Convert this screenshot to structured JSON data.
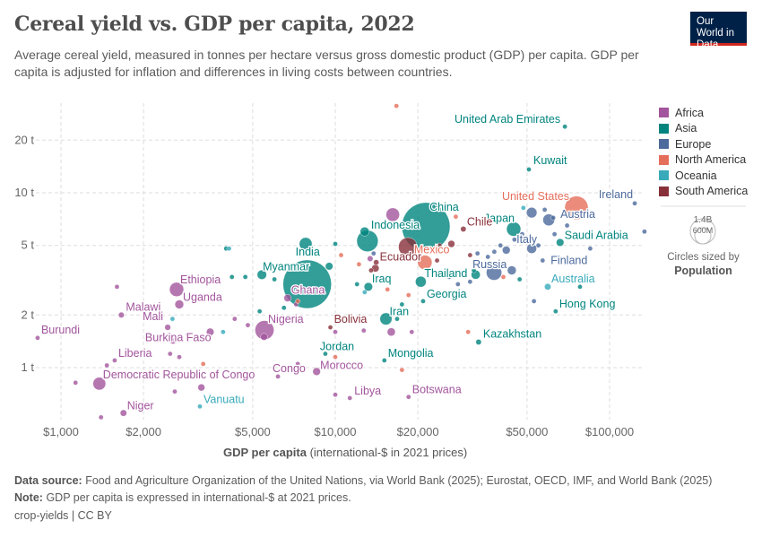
{
  "header": {
    "title": "Cereal yield vs. GDP per capita, 2022",
    "subtitle": "Average cereal yield, measured in tonnes per hectare versus gross domestic product (GDP) per capita. GDP per capita is adjusted for inflation and differences in living costs between countries.",
    "logo": "Our World in Data"
  },
  "legend": {
    "items": [
      {
        "label": "Africa",
        "color": "#a2559c"
      },
      {
        "label": "Asia",
        "color": "#00847e"
      },
      {
        "label": "Europe",
        "color": "#4c6a9c"
      },
      {
        "label": "North America",
        "color": "#e56e5a"
      },
      {
        "label": "Oceania",
        "color": "#38aaba"
      },
      {
        "label": "South America",
        "color": "#883039"
      }
    ],
    "size_big": "1.4B",
    "size_small": "600M",
    "size_caption": "Circles sized by",
    "size_variable": "Population"
  },
  "footer": {
    "source_label": "Data source:",
    "source": "Food and Agriculture Organization of the United Nations, via World Bank (2025); Eurostat, OECD, IMF, and World Bank (2025)",
    "note_label": "Note:",
    "note": "GDP per capita is expressed in international-$ at 2021 prices.",
    "license": "crop-yields | CC BY"
  },
  "chart_data": {
    "type": "scatter",
    "xscale": "log",
    "yscale": "log",
    "xlabel_bold": "GDP per capita",
    "xlabel_rest": "(international-$ in 2021 prices)",
    "ylabel": "",
    "xlim": [
      800,
      134000
    ],
    "ylim": [
      0.5,
      32
    ],
    "grid": true,
    "legend": "right",
    "xticks": [
      {
        "v": 1000,
        "l": "$1,000"
      },
      {
        "v": 2000,
        "l": "$2,000"
      },
      {
        "v": 5000,
        "l": "$5,000"
      },
      {
        "v": 10000,
        "l": "$10,000"
      },
      {
        "v": 20000,
        "l": "$20,000"
      },
      {
        "v": 50000,
        "l": "$50,000"
      },
      {
        "v": 100000,
        "l": "$100,000"
      }
    ],
    "yticks": [
      {
        "v": 1,
        "l": "1 t"
      },
      {
        "v": 2,
        "l": "2 t"
      },
      {
        "v": 5,
        "l": "5 t"
      },
      {
        "v": 10,
        "l": "10 t"
      },
      {
        "v": 20,
        "l": "20 t"
      }
    ],
    "points": [
      {
        "label": "United Arab Emirates",
        "r": "Asia",
        "x": 68700,
        "y": 23.9,
        "pop": 9
      },
      {
        "label": "Kuwait",
        "r": "Asia",
        "x": 50800,
        "y": 13.6,
        "pop": 4
      },
      {
        "label": "United States",
        "r": "North America",
        "x": 75700,
        "y": 8.2,
        "pop": 333
      },
      {
        "label": "Ireland",
        "r": "Europe",
        "x": 123500,
        "y": 8.7,
        "pop": 5
      },
      {
        "label": "Austria",
        "r": "Europe",
        "x": 62300,
        "y": 7.2,
        "pop": 9
      },
      {
        "label": "Japan",
        "r": "Asia",
        "x": 44700,
        "y": 6.2,
        "pop": 124
      },
      {
        "label": "Saudi Arabia",
        "r": "Asia",
        "x": 66000,
        "y": 5.2,
        "pop": 36
      },
      {
        "label": "Italy",
        "r": "Europe",
        "x": 52000,
        "y": 4.8,
        "pop": 59
      },
      {
        "label": "Finland",
        "r": "Europe",
        "x": 57000,
        "y": 4.1,
        "pop": 6
      },
      {
        "label": "Russia",
        "r": "Europe",
        "x": 37900,
        "y": 3.5,
        "pop": 144
      },
      {
        "label": "Australia",
        "r": "Oceania",
        "x": 59500,
        "y": 2.9,
        "pop": 26
      },
      {
        "label": "Hong Kong",
        "r": "Asia",
        "x": 63600,
        "y": 2.1,
        "pop": 7
      },
      {
        "label": "Kazakhstan",
        "r": "Asia",
        "x": 33300,
        "y": 1.4,
        "pop": 19
      },
      {
        "label": "China",
        "r": "Asia",
        "x": 21400,
        "y": 6.4,
        "pop": 1410
      },
      {
        "label": "Chile",
        "r": "South America",
        "x": 29300,
        "y": 6.2,
        "pop": 19
      },
      {
        "label": "Mexico",
        "r": "North America",
        "x": 21200,
        "y": 4.0,
        "pop": 127
      },
      {
        "label": "Ecuador",
        "r": "South America",
        "x": 14100,
        "y": 4.0,
        "pop": 18
      },
      {
        "label": "",
        "r": "South America",
        "x": 18400,
        "y": 4.9,
        "pop": 215
      },
      {
        "label": "Thailand",
        "r": "Asia",
        "x": 20500,
        "y": 3.1,
        "pop": 71
      },
      {
        "label": "Indonesia",
        "r": "Asia",
        "x": 13100,
        "y": 5.3,
        "pop": 276
      },
      {
        "label": "India",
        "r": "Asia",
        "x": 7900,
        "y": 3.0,
        "pop": 1420
      },
      {
        "label": "Myanmar",
        "r": "Asia",
        "x": 5400,
        "y": 3.4,
        "pop": 54
      },
      {
        "label": "Iraq",
        "r": "Asia",
        "x": 13200,
        "y": 2.9,
        "pop": 44
      },
      {
        "label": "Georgia",
        "r": "Asia",
        "x": 20900,
        "y": 2.4,
        "pop": 4
      },
      {
        "label": "Iran",
        "r": "Asia",
        "x": 15300,
        "y": 1.9,
        "pop": 89
      },
      {
        "label": "Bolivia",
        "r": "South America",
        "x": 9600,
        "y": 1.7,
        "pop": 12
      },
      {
        "label": "Jordan",
        "r": "Asia",
        "x": 9200,
        "y": 1.2,
        "pop": 11
      },
      {
        "label": "Mongolia",
        "r": "Asia",
        "x": 15100,
        "y": 1.1,
        "pop": 3
      },
      {
        "label": "Morocco",
        "r": "Africa",
        "x": 8550,
        "y": 0.95,
        "pop": 37
      },
      {
        "label": "Congo",
        "r": "Africa",
        "x": 6180,
        "y": 0.89,
        "pop": 6
      },
      {
        "label": "Libya",
        "r": "Africa",
        "x": 11300,
        "y": 0.67,
        "pop": 7
      },
      {
        "label": "Botswana",
        "r": "Africa",
        "x": 18500,
        "y": 0.68,
        "pop": 3
      },
      {
        "label": "Ethiopia",
        "r": "Africa",
        "x": 2640,
        "y": 2.8,
        "pop": 123
      },
      {
        "label": "Uganda",
        "r": "Africa",
        "x": 2700,
        "y": 2.3,
        "pop": 47
      },
      {
        "label": "Malawi",
        "r": "Africa",
        "x": 1660,
        "y": 2.0,
        "pop": 20
      },
      {
        "label": "Mali",
        "r": "Africa",
        "x": 2450,
        "y": 1.7,
        "pop": 22
      },
      {
        "label": "Nigeria",
        "r": "Africa",
        "x": 5520,
        "y": 1.64,
        "pop": 218
      },
      {
        "label": "Ghana",
        "r": "Africa",
        "x": 6700,
        "y": 2.5,
        "pop": 33
      },
      {
        "label": "Burkina Faso",
        "r": "Africa",
        "x": 2560,
        "y": 1.42,
        "pop": 22
      },
      {
        "label": "Burundi",
        "r": "Africa",
        "x": 822,
        "y": 1.48,
        "pop": 13
      },
      {
        "label": "Liberia",
        "r": "Africa",
        "x": 1570,
        "y": 1.1,
        "pop": 5
      },
      {
        "label": "Democratic Republic of Congo",
        "r": "Africa",
        "x": 1380,
        "y": 0.81,
        "pop": 99
      },
      {
        "label": "Niger",
        "r": "Africa",
        "x": 1690,
        "y": 0.55,
        "pop": 26
      },
      {
        "label": "Vanuatu",
        "r": "Oceania",
        "x": 3210,
        "y": 0.6,
        "pop": 0.3
      },
      {
        "label": "",
        "r": "Africa",
        "x": 16200,
        "y": 7.5,
        "pop": 111
      },
      {
        "label": "",
        "r": "North America",
        "x": 16700,
        "y": 31.4,
        "pop": 0.3
      },
      {
        "label": "",
        "r": "Africa",
        "x": 1600,
        "y": 2.9,
        "pop": 5
      },
      {
        "label": "",
        "r": "Africa",
        "x": 4300,
        "y": 1.9,
        "pop": 5
      },
      {
        "label": "",
        "r": "Africa",
        "x": 4800,
        "y": 1.75,
        "pop": 5
      },
      {
        "label": "",
        "r": "Africa",
        "x": 3500,
        "y": 1.6,
        "pop": 35
      },
      {
        "label": "",
        "r": "Africa",
        "x": 2900,
        "y": 1.55,
        "pop": 5
      },
      {
        "label": "",
        "r": "Africa",
        "x": 3250,
        "y": 1.45,
        "pop": 5
      },
      {
        "label": "",
        "r": "Africa",
        "x": 2500,
        "y": 1.2,
        "pop": 5
      },
      {
        "label": "",
        "r": "Africa",
        "x": 2700,
        "y": 1.15,
        "pop": 5
      },
      {
        "label": "",
        "r": "Africa",
        "x": 1470,
        "y": 1.03,
        "pop": 5
      },
      {
        "label": "",
        "r": "Africa",
        "x": 1130,
        "y": 0.82,
        "pop": 5
      },
      {
        "label": "",
        "r": "Africa",
        "x": 2600,
        "y": 0.73,
        "pop": 5
      },
      {
        "label": "",
        "r": "Africa",
        "x": 3250,
        "y": 0.77,
        "pop": 30
      },
      {
        "label": "",
        "r": "Africa",
        "x": 7300,
        "y": 1.05,
        "pop": 5
      },
      {
        "label": "",
        "r": "Africa",
        "x": 10000,
        "y": 0.7,
        "pop": 5
      },
      {
        "label": "",
        "r": "Africa",
        "x": 10000,
        "y": 1.6,
        "pop": 5
      },
      {
        "label": "",
        "r": "Africa",
        "x": 12700,
        "y": 1.63,
        "pop": 5
      },
      {
        "label": "",
        "r": "Africa",
        "x": 16000,
        "y": 1.6,
        "pop": 40
      },
      {
        "label": "",
        "r": "Africa",
        "x": 19000,
        "y": 1.6,
        "pop": 5
      },
      {
        "label": "",
        "r": "Africa",
        "x": 1400,
        "y": 0.52,
        "pop": 5
      },
      {
        "label": "",
        "r": "Africa",
        "x": 5500,
        "y": 1.5,
        "pop": 30
      },
      {
        "label": "",
        "r": "Africa",
        "x": 7200,
        "y": 2.3,
        "pop": 5
      },
      {
        "label": "",
        "r": "Africa",
        "x": 13400,
        "y": 4.2,
        "pop": 20
      },
      {
        "label": "",
        "r": "Asia",
        "x": 4000,
        "y": 4.8,
        "pop": 3
      },
      {
        "label": "",
        "r": "Asia",
        "x": 4200,
        "y": 3.3,
        "pop": 3
      },
      {
        "label": "",
        "r": "Asia",
        "x": 4700,
        "y": 3.3,
        "pop": 5
      },
      {
        "label": "",
        "r": "Asia",
        "x": 6000,
        "y": 3.2,
        "pop": 5
      },
      {
        "label": "",
        "r": "Asia",
        "x": 6500,
        "y": 2.2,
        "pop": 5
      },
      {
        "label": "",
        "r": "Asia",
        "x": 5300,
        "y": 2.1,
        "pop": 5
      },
      {
        "label": "",
        "r": "Asia",
        "x": 7800,
        "y": 5.1,
        "pop": 100
      },
      {
        "label": "",
        "r": "Asia",
        "x": 9500,
        "y": 3.8,
        "pop": 35
      },
      {
        "label": "",
        "r": "Asia",
        "x": 10000,
        "y": 5.1,
        "pop": 3
      },
      {
        "label": "",
        "r": "Asia",
        "x": 12800,
        "y": 6.0,
        "pop": 50
      },
      {
        "label": "",
        "r": "Asia",
        "x": 17500,
        "y": 2.3,
        "pop": 3
      },
      {
        "label": "",
        "r": "Asia",
        "x": 16800,
        "y": 1.9,
        "pop": 3
      },
      {
        "label": "",
        "r": "Asia",
        "x": 32000,
        "y": 3.6,
        "pop": 5
      },
      {
        "label": "",
        "r": "Asia",
        "x": 32500,
        "y": 3.4,
        "pop": 50
      },
      {
        "label": "",
        "r": "Asia",
        "x": 47000,
        "y": 3.2,
        "pop": 5
      },
      {
        "label": "",
        "r": "Asia",
        "x": 78000,
        "y": 2.9,
        "pop": 3
      },
      {
        "label": "",
        "r": "Asia",
        "x": 12000,
        "y": 3.0,
        "pop": 3
      },
      {
        "label": "",
        "r": "Europe",
        "x": 26000,
        "y": 3.3,
        "pop": 5
      },
      {
        "label": "",
        "r": "Europe",
        "x": 31000,
        "y": 3.1,
        "pop": 5
      },
      {
        "label": "",
        "r": "Europe",
        "x": 38000,
        "y": 4.6,
        "pop": 5
      },
      {
        "label": "",
        "r": "Europe",
        "x": 40000,
        "y": 5.0,
        "pop": 10
      },
      {
        "label": "",
        "r": "Europe",
        "x": 42000,
        "y": 4.7,
        "pop": 38
      },
      {
        "label": "",
        "r": "Europe",
        "x": 45000,
        "y": 5.4,
        "pop": 5
      },
      {
        "label": "",
        "r": "Europe",
        "x": 48000,
        "y": 5.8,
        "pop": 5
      },
      {
        "label": "",
        "r": "Europe",
        "x": 52000,
        "y": 7.7,
        "pop": 67
      },
      {
        "label": "",
        "r": "Europe",
        "x": 58000,
        "y": 8.0,
        "pop": 5
      },
      {
        "label": "",
        "r": "Europe",
        "x": 60000,
        "y": 7.0,
        "pop": 84
      },
      {
        "label": "",
        "r": "Europe",
        "x": 63000,
        "y": 5.8,
        "pop": 5
      },
      {
        "label": "",
        "r": "Europe",
        "x": 70000,
        "y": 6.5,
        "pop": 5
      },
      {
        "label": "",
        "r": "Europe",
        "x": 85000,
        "y": 4.8,
        "pop": 5
      },
      {
        "label": "",
        "r": "Europe",
        "x": 134000,
        "y": 6.0,
        "pop": 1
      },
      {
        "label": "",
        "r": "Europe",
        "x": 53000,
        "y": 2.4,
        "pop": 5
      },
      {
        "label": "",
        "r": "Europe",
        "x": 36000,
        "y": 4.3,
        "pop": 5
      },
      {
        "label": "",
        "r": "Europe",
        "x": 44000,
        "y": 3.6,
        "pop": 48
      },
      {
        "label": "",
        "r": "Europe",
        "x": 33000,
        "y": 4.5,
        "pop": 5
      },
      {
        "label": "",
        "r": "Europe",
        "x": 13800,
        "y": 4.5,
        "pop": 5
      },
      {
        "label": "",
        "r": "Europe",
        "x": 55000,
        "y": 5.0,
        "pop": 5
      },
      {
        "label": "",
        "r": "Europe",
        "x": 28000,
        "y": 3.0,
        "pop": 5
      },
      {
        "label": "",
        "r": "North America",
        "x": 10500,
        "y": 4.4,
        "pop": 1
      },
      {
        "label": "",
        "r": "North America",
        "x": 12200,
        "y": 3.9,
        "pop": 1
      },
      {
        "label": "",
        "r": "North America",
        "x": 15500,
        "y": 2.8,
        "pop": 2
      },
      {
        "label": "",
        "r": "North America",
        "x": 18500,
        "y": 2.6,
        "pop": 2
      },
      {
        "label": "",
        "r": "North America",
        "x": 26500,
        "y": 3.4,
        "pop": 2
      },
      {
        "label": "",
        "r": "North America",
        "x": 27500,
        "y": 7.3,
        "pop": 1
      },
      {
        "label": "",
        "r": "North America",
        "x": 41000,
        "y": 3.3,
        "pop": 1
      },
      {
        "label": "",
        "r": "North America",
        "x": 30500,
        "y": 1.6,
        "pop": 1
      },
      {
        "label": "",
        "r": "North America",
        "x": 10000,
        "y": 1.15,
        "pop": 1
      },
      {
        "label": "",
        "r": "North America",
        "x": 17500,
        "y": 0.97,
        "pop": 1
      },
      {
        "label": "",
        "r": "North America",
        "x": 3300,
        "y": 1.05,
        "pop": 1
      },
      {
        "label": "",
        "r": "North America",
        "x": 7300,
        "y": 2.4,
        "pop": 1
      },
      {
        "label": "",
        "r": "Oceania",
        "x": 4100,
        "y": 4.8,
        "pop": 1
      },
      {
        "label": "",
        "r": "Oceania",
        "x": 2550,
        "y": 1.9,
        "pop": 1
      },
      {
        "label": "",
        "r": "Oceania",
        "x": 3900,
        "y": 1.6,
        "pop": 1
      },
      {
        "label": "",
        "r": "Oceania",
        "x": 12800,
        "y": 2.7,
        "pop": 1
      },
      {
        "label": "",
        "r": "Oceania",
        "x": 48500,
        "y": 8.2,
        "pop": 5
      },
      {
        "label": "",
        "r": "South America",
        "x": 26500,
        "y": 5.1,
        "pop": 30
      },
      {
        "label": "",
        "r": "South America",
        "x": 14000,
        "y": 3.7,
        "pop": 34
      },
      {
        "label": "",
        "r": "South America",
        "x": 24000,
        "y": 5.0,
        "pop": 3
      },
      {
        "label": "",
        "r": "South America",
        "x": 31000,
        "y": 4.4,
        "pop": 3
      },
      {
        "label": "",
        "r": "South America",
        "x": 23500,
        "y": 4.1,
        "pop": 3
      },
      {
        "label": "",
        "r": "South America",
        "x": 13500,
        "y": 3.6,
        "pop": 7
      }
    ]
  }
}
